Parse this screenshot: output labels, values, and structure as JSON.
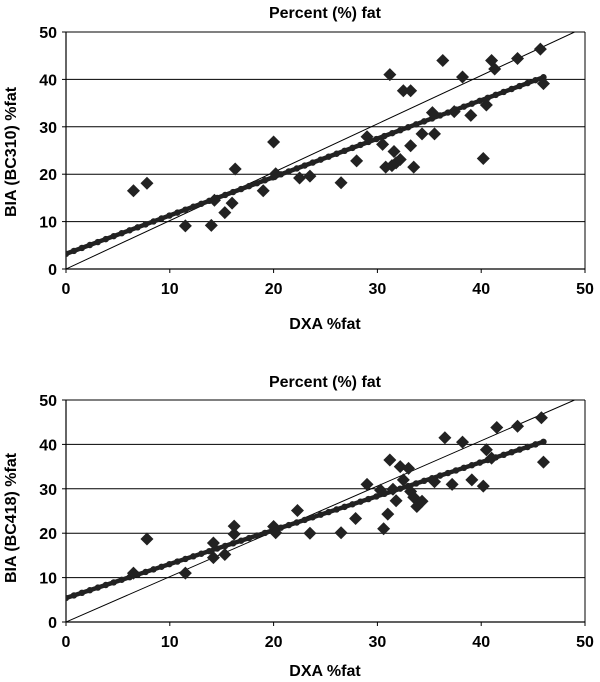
{
  "chart_data": [
    {
      "type": "scatter",
      "title": "Percent (%) fat",
      "xlabel": "DXA %fat",
      "ylabel": "BIA (BC310) %fat",
      "xlim": [
        0,
        50
      ],
      "ylim": [
        0,
        50
      ],
      "xticks": [
        0,
        10,
        20,
        30,
        40,
        50
      ],
      "yticks": [
        0,
        10,
        20,
        30,
        40,
        50
      ],
      "grid": "horizontal",
      "marker_color": "#222222",
      "identity_line": [
        [
          0,
          0
        ],
        [
          49,
          50
        ]
      ],
      "regression_line": {
        "intercept": 3.2,
        "slope": 0.81,
        "x_range": [
          0,
          46
        ]
      },
      "points": [
        [
          6.5,
          16.5
        ],
        [
          7.8,
          18.1
        ],
        [
          11.5,
          9.1
        ],
        [
          14.0,
          9.2
        ],
        [
          14.3,
          14.5
        ],
        [
          15.3,
          11.9
        ],
        [
          16.0,
          13.9
        ],
        [
          16.3,
          21.1
        ],
        [
          19.0,
          16.5
        ],
        [
          20.0,
          26.8
        ],
        [
          20.2,
          20.1
        ],
        [
          22.5,
          19.2
        ],
        [
          23.5,
          19.6
        ],
        [
          26.5,
          18.2
        ],
        [
          28.0,
          22.8
        ],
        [
          29.0,
          27.9
        ],
        [
          30.5,
          26.3
        ],
        [
          30.8,
          21.5
        ],
        [
          31.2,
          41.0
        ],
        [
          31.4,
          21.8
        ],
        [
          31.6,
          24.8
        ],
        [
          31.8,
          22.4
        ],
        [
          32.2,
          23.1
        ],
        [
          32.5,
          37.6
        ],
        [
          33.2,
          37.6
        ],
        [
          33.2,
          26.0
        ],
        [
          33.5,
          21.5
        ],
        [
          34.3,
          28.5
        ],
        [
          35.3,
          33.0
        ],
        [
          35.5,
          28.5
        ],
        [
          36.3,
          44.0
        ],
        [
          37.4,
          33.2
        ],
        [
          38.2,
          40.5
        ],
        [
          39.0,
          32.4
        ],
        [
          40.2,
          23.3
        ],
        [
          40.5,
          34.6
        ],
        [
          41.0,
          44.0
        ],
        [
          41.3,
          42.2
        ],
        [
          43.5,
          44.4
        ],
        [
          45.7,
          46.4
        ],
        [
          46.0,
          39.1
        ]
      ]
    },
    {
      "type": "scatter",
      "title": "Percent (%) fat",
      "xlabel": "DXA %fat",
      "ylabel": "BIA (BC418) %fat",
      "xlim": [
        0,
        50
      ],
      "ylim": [
        0,
        50
      ],
      "xticks": [
        0,
        10,
        20,
        30,
        40,
        50
      ],
      "yticks": [
        0,
        10,
        20,
        30,
        40,
        50
      ],
      "grid": "horizontal",
      "marker_color": "#222222",
      "identity_line": [
        [
          0,
          0
        ],
        [
          49,
          50
        ]
      ],
      "regression_line": {
        "intercept": 5.4,
        "slope": 0.765,
        "x_range": [
          0,
          46
        ]
      },
      "points": [
        [
          6.5,
          11.0
        ],
        [
          7.8,
          18.7
        ],
        [
          11.5,
          11.0
        ],
        [
          14.2,
          17.8
        ],
        [
          14.2,
          14.5
        ],
        [
          15.3,
          15.2
        ],
        [
          16.2,
          21.6
        ],
        [
          16.2,
          19.8
        ],
        [
          20.0,
          21.5
        ],
        [
          20.2,
          20.1
        ],
        [
          22.3,
          25.1
        ],
        [
          23.5,
          20.0
        ],
        [
          26.5,
          20.1
        ],
        [
          27.9,
          23.3
        ],
        [
          29.0,
          31.0
        ],
        [
          30.3,
          29.7
        ],
        [
          30.6,
          21.0
        ],
        [
          31.0,
          24.3
        ],
        [
          31.2,
          36.5
        ],
        [
          31.5,
          29.9
        ],
        [
          31.8,
          27.3
        ],
        [
          32.2,
          35.0
        ],
        [
          32.5,
          32.0
        ],
        [
          33.0,
          34.6
        ],
        [
          33.2,
          29.4
        ],
        [
          33.5,
          28.1
        ],
        [
          33.8,
          26.0
        ],
        [
          34.3,
          27.2
        ],
        [
          35.5,
          31.6
        ],
        [
          36.5,
          41.5
        ],
        [
          37.2,
          31.0
        ],
        [
          38.2,
          40.5
        ],
        [
          39.1,
          32.0
        ],
        [
          40.2,
          30.6
        ],
        [
          40.5,
          38.8
        ],
        [
          41.0,
          36.9
        ],
        [
          41.5,
          43.8
        ],
        [
          43.5,
          44.1
        ],
        [
          45.8,
          46.0
        ],
        [
          46.0,
          36.0
        ]
      ]
    }
  ]
}
